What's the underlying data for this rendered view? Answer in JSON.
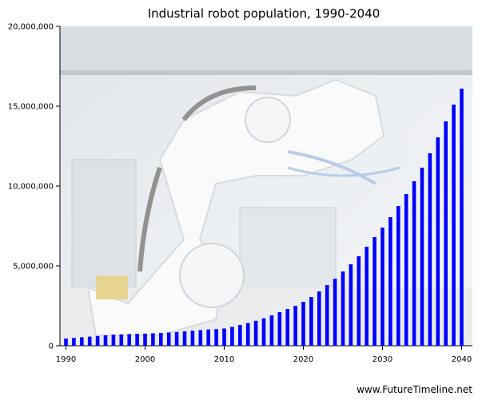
{
  "chart_data": {
    "type": "bar",
    "title": "Industrial robot population, 1990-2040",
    "xlabel": "",
    "ylabel": "",
    "ylim": [
      0,
      20000000
    ],
    "y_ticks": [
      "0",
      "5,000,000",
      "10,000,000",
      "15,000,000",
      "20,000,000"
    ],
    "x_tick_labels": [
      "1990",
      "2000",
      "2010",
      "2020",
      "2030",
      "2040"
    ],
    "bar_color": "#0000ff",
    "grid": false,
    "legend": "none",
    "categories": [
      1990,
      1991,
      1992,
      1993,
      1994,
      1995,
      1996,
      1997,
      1998,
      1999,
      2000,
      2001,
      2002,
      2003,
      2004,
      2005,
      2006,
      2007,
      2008,
      2009,
      2010,
      2011,
      2012,
      2013,
      2014,
      2015,
      2016,
      2017,
      2018,
      2019,
      2020,
      2021,
      2022,
      2023,
      2024,
      2025,
      2026,
      2027,
      2028,
      2029,
      2030,
      2031,
      2032,
      2033,
      2034,
      2035,
      2036,
      2037,
      2038,
      2039,
      2040
    ],
    "values": [
      450000,
      490000,
      530000,
      570000,
      610000,
      650000,
      690000,
      710000,
      730000,
      750000,
      760000,
      780000,
      800000,
      830000,
      860000,
      900000,
      940000,
      980000,
      1020000,
      1040000,
      1080000,
      1180000,
      1300000,
      1420000,
      1560000,
      1720000,
      1900000,
      2100000,
      2300000,
      2500000,
      2750000,
      3050000,
      3400000,
      3800000,
      4200000,
      4650000,
      5100000,
      5600000,
      6200000,
      6800000,
      7400000,
      8050000,
      8750000,
      9500000,
      10300000,
      11150000,
      12050000,
      13050000,
      14050000,
      15100000,
      16100000
    ],
    "background_image": "industrial-robot-photo"
  },
  "footer": {
    "credit": "www.FutureTimeline.net"
  }
}
